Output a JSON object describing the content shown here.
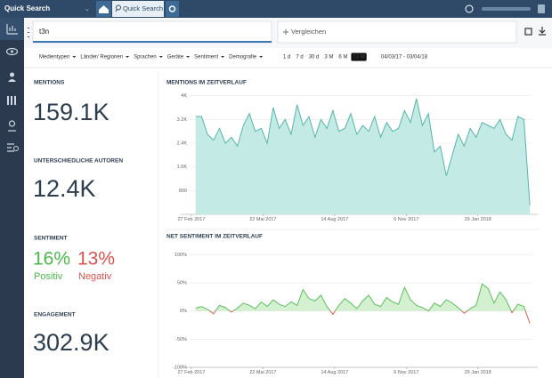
{
  "topbar": {
    "app_title": "Quick Search",
    "tab": "Quick Search"
  },
  "search": {
    "query": "t3n",
    "compare": "Vergleichen"
  },
  "filters": [
    "Medientypen",
    "Länder/ Regionen",
    "Sprachen",
    "Geräte",
    "Sentiment",
    "Demografie"
  ],
  "ranges": [
    "1 d",
    "7 d",
    "30 d",
    "3 M",
    "6 M",
    "13 M"
  ],
  "active_range": "13 M",
  "date_range": "04/03/17 - 03/04/18",
  "kpis": {
    "mentions": {
      "label": "MENTIONS",
      "value": "159.1K"
    },
    "authors": {
      "label": "UNTERSCHIEDLICHE AUTOREN",
      "value": "12.4K"
    },
    "sentiment": {
      "label": "SENTIMENT",
      "positive": "16%",
      "positive_label": "Positiv",
      "negative": "13%",
      "negative_label": "Negativ"
    },
    "engagement": {
      "label": "ENGAGEMENT",
      "value": "302.9K"
    }
  },
  "chart_data": [
    {
      "type": "area",
      "title": "MENTIONS IM ZEITVERLAUF",
      "color": "#55b5ab",
      "fill": "#c4eae6",
      "x": [
        "2017-03-04",
        "2017-03-11",
        "2017-03-18",
        "2017-03-25",
        "2017-04-01",
        "2017-04-08",
        "2017-04-15",
        "2017-04-22",
        "2017-04-29",
        "2017-05-06",
        "2017-05-13",
        "2017-05-20",
        "2017-05-27",
        "2017-06-03",
        "2017-06-10",
        "2017-06-17",
        "2017-06-24",
        "2017-07-01",
        "2017-07-08",
        "2017-07-15",
        "2017-07-22",
        "2017-07-29",
        "2017-08-05",
        "2017-08-12",
        "2017-08-19",
        "2017-08-26",
        "2017-09-02",
        "2017-09-09",
        "2017-09-16",
        "2017-09-23",
        "2017-09-30",
        "2017-10-07",
        "2017-10-14",
        "2017-10-21",
        "2017-10-28",
        "2017-11-04",
        "2017-11-11",
        "2017-11-18",
        "2017-11-25",
        "2017-12-02",
        "2017-12-09",
        "2017-12-16",
        "2017-12-23",
        "2017-12-30",
        "2018-01-06",
        "2018-01-13",
        "2018-01-20",
        "2018-01-27",
        "2018-02-03",
        "2018-02-10",
        "2018-02-17",
        "2018-02-24",
        "2018-03-03",
        "2018-03-10",
        "2018-03-17",
        "2018-03-24",
        "2018-03-31"
      ],
      "values": [
        3300,
        3300,
        2700,
        2500,
        2900,
        2400,
        2600,
        2300,
        3000,
        3400,
        2800,
        2900,
        2400,
        3600,
        2900,
        3200,
        2700,
        3700,
        3000,
        3300,
        2600,
        3200,
        2900,
        3500,
        2800,
        2900,
        3400,
        2700,
        3000,
        2800,
        3300,
        2600,
        3100,
        2800,
        2900,
        3500,
        3100,
        3900,
        3000,
        3400,
        2100,
        2300,
        1300,
        2000,
        2700,
        2300,
        2900,
        2600,
        3100,
        3000,
        2900,
        3200,
        2700,
        2500,
        3300,
        3200,
        300
      ],
      "xlim": [
        "2017-02-25",
        "2018-04-03"
      ],
      "xticks": [
        {
          "value": "2017-02-27",
          "label": "27 Feb 2017"
        },
        {
          "value": "2017-05-22",
          "label": "22 Mai 2017"
        },
        {
          "value": "2017-08-14",
          "label": "14 Aug 2017"
        },
        {
          "value": "2017-11-06",
          "label": "6 Nov 2017"
        },
        {
          "value": "2018-01-29",
          "label": "29 Jan 2018"
        }
      ],
      "ylim": [
        0,
        4200
      ],
      "yticks": [
        800,
        {
          "value": 1600,
          "label": "1.6K"
        },
        {
          "value": 2400,
          "label": "2.4K"
        },
        {
          "value": 3200,
          "label": "3.2K"
        },
        {
          "value": 4000,
          "label": "4K"
        }
      ],
      "grid": true
    },
    {
      "type": "line",
      "title": "NET SENTIMENT IM ZEITVERLAUF",
      "color": "#5cc05c",
      "negative_color": "#e35b4f",
      "fill": "#d3f0d0",
      "x": [
        "2017-03-04",
        "2017-03-11",
        "2017-03-18",
        "2017-03-25",
        "2017-04-01",
        "2017-04-08",
        "2017-04-15",
        "2017-04-22",
        "2017-04-29",
        "2017-05-06",
        "2017-05-13",
        "2017-05-20",
        "2017-05-27",
        "2017-06-03",
        "2017-06-10",
        "2017-06-17",
        "2017-06-24",
        "2017-07-01",
        "2017-07-08",
        "2017-07-15",
        "2017-07-22",
        "2017-07-29",
        "2017-08-05",
        "2017-08-12",
        "2017-08-19",
        "2017-08-26",
        "2017-09-02",
        "2017-09-09",
        "2017-09-16",
        "2017-09-23",
        "2017-09-30",
        "2017-10-07",
        "2017-10-14",
        "2017-10-21",
        "2017-10-28",
        "2017-11-04",
        "2017-11-11",
        "2017-11-18",
        "2017-11-25",
        "2017-12-02",
        "2017-12-09",
        "2017-12-16",
        "2017-12-23",
        "2017-12-30",
        "2018-01-06",
        "2018-01-13",
        "2018-01-20",
        "2018-01-27",
        "2018-02-03",
        "2018-02-10",
        "2018-02-17",
        "2018-02-24",
        "2018-03-03",
        "2018-03-10",
        "2018-03-17",
        "2018-03-24",
        "2018-03-31"
      ],
      "values": [
        5,
        8,
        3,
        -5,
        10,
        6,
        -2,
        5,
        14,
        10,
        4,
        16,
        8,
        20,
        12,
        8,
        16,
        10,
        38,
        22,
        18,
        28,
        8,
        -6,
        10,
        22,
        14,
        4,
        18,
        28,
        12,
        8,
        24,
        16,
        12,
        42,
        20,
        10,
        6,
        0,
        14,
        8,
        20,
        14,
        6,
        -4,
        4,
        10,
        48,
        40,
        14,
        34,
        20,
        -3,
        12,
        8,
        -22
      ],
      "xlim": [
        "2017-02-25",
        "2018-04-03"
      ],
      "xticks": [
        {
          "value": "2017-02-27",
          "label": "27 Feb 2017"
        },
        {
          "value": "2017-05-22",
          "label": "22 Mai 2017"
        },
        {
          "value": "2017-08-14",
          "label": "14 Aug 2017"
        },
        {
          "value": "2017-11-06",
          "label": "6 Nov 2017"
        },
        {
          "value": "2018-01-29",
          "label": "29 Jan 2018"
        }
      ],
      "ylim": [
        -100,
        110
      ],
      "yticks": [
        {
          "value": -100,
          "label": "-100%"
        },
        {
          "value": -50,
          "label": "-50%"
        },
        {
          "value": 0,
          "label": "0%"
        },
        {
          "value": 50,
          "label": "50%"
        },
        {
          "value": 100,
          "label": "100%"
        }
      ],
      "grid": true
    }
  ]
}
